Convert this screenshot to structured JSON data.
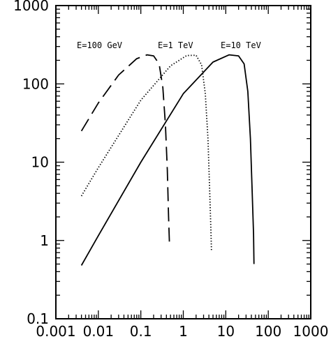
{
  "chart_data": {
    "type": "line",
    "title": "",
    "xlabel": "",
    "ylabel": "",
    "x_scale": "log",
    "y_scale": "log",
    "xlim": [
      0.001,
      1000
    ],
    "ylim": [
      0.1,
      1000
    ],
    "grid": false,
    "x_ticks": [
      "0.001",
      "0.01",
      "0.1",
      "1",
      "10",
      "100",
      "1000"
    ],
    "x_tick_values": [
      0.001,
      0.01,
      0.1,
      1,
      10,
      100,
      1000
    ],
    "y_ticks": [
      "0.1",
      "1",
      "10",
      "100",
      "1000"
    ],
    "y_tick_values": [
      0.1,
      1,
      10,
      100,
      1000
    ],
    "series": [
      {
        "name": "E=100 GeV",
        "style": "long-dash",
        "points": [
          [
            0.004,
            25
          ],
          [
            0.01,
            57
          ],
          [
            0.03,
            130
          ],
          [
            0.08,
            210
          ],
          [
            0.14,
            235
          ],
          [
            0.2,
            228
          ],
          [
            0.27,
            180
          ],
          [
            0.33,
            90
          ],
          [
            0.38,
            30
          ],
          [
            0.42,
            8
          ],
          [
            0.45,
            2
          ],
          [
            0.47,
            0.95
          ]
        ]
      },
      {
        "name": "E=1 TeV",
        "style": "dotted",
        "points": [
          [
            0.004,
            3.7
          ],
          [
            0.01,
            8.5
          ],
          [
            0.1,
            62
          ],
          [
            0.5,
            170
          ],
          [
            1.2,
            230
          ],
          [
            2.0,
            232
          ],
          [
            2.7,
            175
          ],
          [
            3.3,
            75
          ],
          [
            3.8,
            20
          ],
          [
            4.2,
            4
          ],
          [
            4.5,
            1.2
          ],
          [
            4.6,
            0.75
          ]
        ]
      },
      {
        "name": "E=10 TeV",
        "style": "solid",
        "points": [
          [
            0.004,
            0.48
          ],
          [
            0.01,
            1.15
          ],
          [
            0.1,
            10
          ],
          [
            1,
            75
          ],
          [
            5,
            190
          ],
          [
            12,
            235
          ],
          [
            20,
            228
          ],
          [
            27,
            180
          ],
          [
            33,
            80
          ],
          [
            38,
            20
          ],
          [
            42,
            4
          ],
          [
            45,
            1.2
          ],
          [
            46,
            0.5
          ]
        ]
      }
    ]
  }
}
